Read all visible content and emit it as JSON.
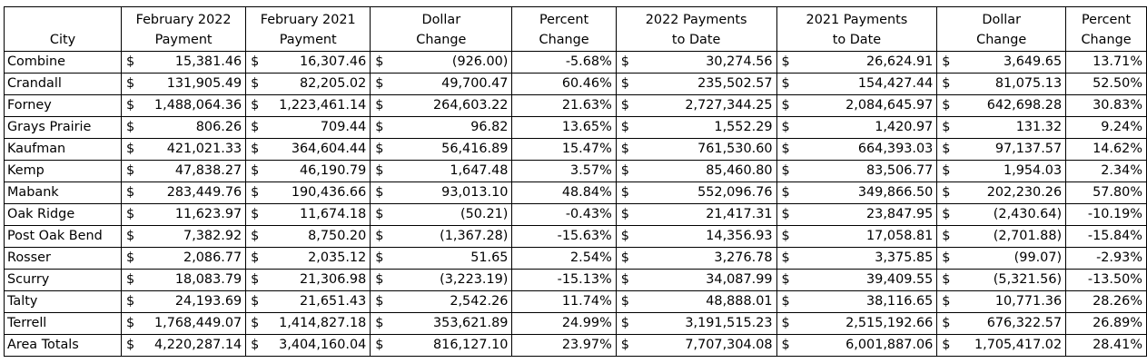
{
  "headers": {
    "city": [
      "",
      "City"
    ],
    "feb2022": [
      "February 2022",
      "Payment"
    ],
    "feb2021": [
      "February 2021",
      "Payment"
    ],
    "dollar_change": [
      "Dollar",
      "Change"
    ],
    "percent_change": [
      "Percent",
      "Change"
    ],
    "pay2022": [
      "2022 Payments",
      "to Date"
    ],
    "pay2021": [
      "2021 Payments",
      "to Date"
    ],
    "dollar_change_td": [
      "Dollar",
      "Change"
    ],
    "percent_change_td": [
      "Percent",
      "Change"
    ]
  },
  "currency_symbol": "$",
  "rows": [
    {
      "city": "Combine",
      "feb2022": "15,381.46",
      "feb2021": "16,307.46",
      "dollar_change": "(926.00)",
      "percent_change": "-5.68%",
      "pay2022": "30,274.56",
      "pay2021": "26,624.91",
      "dollar_change_td": "3,649.65",
      "percent_change_td": "13.71%"
    },
    {
      "city": "Crandall",
      "feb2022": "131,905.49",
      "feb2021": "82,205.02",
      "dollar_change": "49,700.47",
      "percent_change": "60.46%",
      "pay2022": "235,502.57",
      "pay2021": "154,427.44",
      "dollar_change_td": "81,075.13",
      "percent_change_td": "52.50%"
    },
    {
      "city": "Forney",
      "feb2022": "1,488,064.36",
      "feb2021": "1,223,461.14",
      "dollar_change": "264,603.22",
      "percent_change": "21.63%",
      "pay2022": "2,727,344.25",
      "pay2021": "2,084,645.97",
      "dollar_change_td": "642,698.28",
      "percent_change_td": "30.83%"
    },
    {
      "city": "Grays Prairie",
      "feb2022": "806.26",
      "feb2021": "709.44",
      "dollar_change": "96.82",
      "percent_change": "13.65%",
      "pay2022": "1,552.29",
      "pay2021": "1,420.97",
      "dollar_change_td": "131.32",
      "percent_change_td": "9.24%"
    },
    {
      "city": "Kaufman",
      "feb2022": "421,021.33",
      "feb2021": "364,604.44",
      "dollar_change": "56,416.89",
      "percent_change": "15.47%",
      "pay2022": "761,530.60",
      "pay2021": "664,393.03",
      "dollar_change_td": "97,137.57",
      "percent_change_td": "14.62%"
    },
    {
      "city": "Kemp",
      "feb2022": "47,838.27",
      "feb2021": "46,190.79",
      "dollar_change": "1,647.48",
      "percent_change": "3.57%",
      "pay2022": "85,460.80",
      "pay2021": "83,506.77",
      "dollar_change_td": "1,954.03",
      "percent_change_td": "2.34%"
    },
    {
      "city": "Mabank",
      "feb2022": "283,449.76",
      "feb2021": "190,436.66",
      "dollar_change": "93,013.10",
      "percent_change": "48.84%",
      "pay2022": "552,096.76",
      "pay2021": "349,866.50",
      "dollar_change_td": "202,230.26",
      "percent_change_td": "57.80%"
    },
    {
      "city": "Oak Ridge",
      "feb2022": "11,623.97",
      "feb2021": "11,674.18",
      "dollar_change": "(50.21)",
      "percent_change": "-0.43%",
      "pay2022": "21,417.31",
      "pay2021": "23,847.95",
      "dollar_change_td": "(2,430.64)",
      "percent_change_td": "-10.19%"
    },
    {
      "city": "Post Oak Bend",
      "feb2022": "7,382.92",
      "feb2021": "8,750.20",
      "dollar_change": "(1,367.28)",
      "percent_change": "-15.63%",
      "pay2022": "14,356.93",
      "pay2021": "17,058.81",
      "dollar_change_td": "(2,701.88)",
      "percent_change_td": "-15.84%"
    },
    {
      "city": "Rosser",
      "feb2022": "2,086.77",
      "feb2021": "2,035.12",
      "dollar_change": "51.65",
      "percent_change": "2.54%",
      "pay2022": "3,276.78",
      "pay2021": "3,375.85",
      "dollar_change_td": "(99.07)",
      "percent_change_td": "-2.93%"
    },
    {
      "city": "Scurry",
      "feb2022": "18,083.79",
      "feb2021": "21,306.98",
      "dollar_change": "(3,223.19)",
      "percent_change": "-15.13%",
      "pay2022": "34,087.99",
      "pay2021": "39,409.55",
      "dollar_change_td": "(5,321.56)",
      "percent_change_td": "-13.50%"
    },
    {
      "city": "Talty",
      "feb2022": "24,193.69",
      "feb2021": "21,651.43",
      "dollar_change": "2,542.26",
      "percent_change": "11.74%",
      "pay2022": "48,888.01",
      "pay2021": "38,116.65",
      "dollar_change_td": "10,771.36",
      "percent_change_td": "28.26%"
    },
    {
      "city": "Terrell",
      "feb2022": "1,768,449.07",
      "feb2021": "1,414,827.18",
      "dollar_change": "353,621.89",
      "percent_change": "24.99%",
      "pay2022": "3,191,515.23",
      "pay2021": "2,515,192.66",
      "dollar_change_td": "676,322.57",
      "percent_change_td": "26.89%"
    },
    {
      "city": "Area Totals",
      "feb2022": "4,220,287.14",
      "feb2021": "3,404,160.04",
      "dollar_change": "816,127.10",
      "percent_change": "23.97%",
      "pay2022": "7,707,304.08",
      "pay2021": "6,001,887.06",
      "dollar_change_td": "1,705,417.02",
      "percent_change_td": "28.41%"
    }
  ]
}
